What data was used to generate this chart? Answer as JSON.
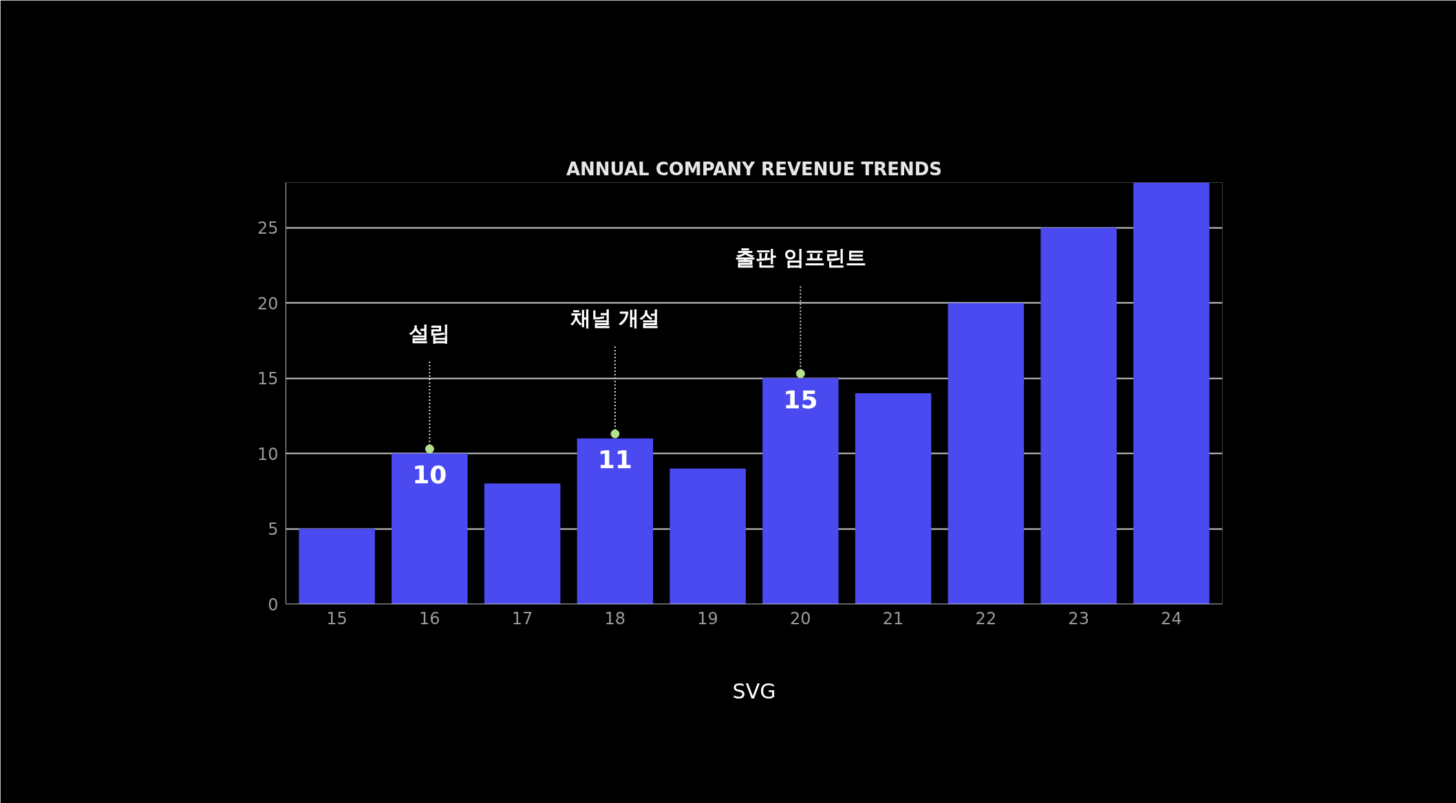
{
  "chart_data": {
    "type": "bar",
    "title": "ANNUAL COMPANY REVENUE TRENDS",
    "categories": [
      "15",
      "16",
      "17",
      "18",
      "19",
      "20",
      "21",
      "22",
      "23",
      "24"
    ],
    "values": [
      5,
      10,
      8,
      11,
      9,
      15,
      14,
      20,
      25,
      28
    ],
    "value_labels": [
      null,
      "10",
      null,
      "11",
      null,
      "15",
      null,
      null,
      null,
      null
    ],
    "color": "#4a4af0",
    "ylim": [
      0,
      28
    ],
    "yticks": [
      0,
      5,
      10,
      15,
      20,
      25
    ],
    "grid": "y",
    "annotations": [
      {
        "text": "설립",
        "x": "16",
        "y": 10
      },
      {
        "text": "채널 개설",
        "x": "18",
        "y": 11
      },
      {
        "text": "출판 임프린트",
        "x": "20",
        "y": 15
      },
      "SVG"
    ]
  }
}
